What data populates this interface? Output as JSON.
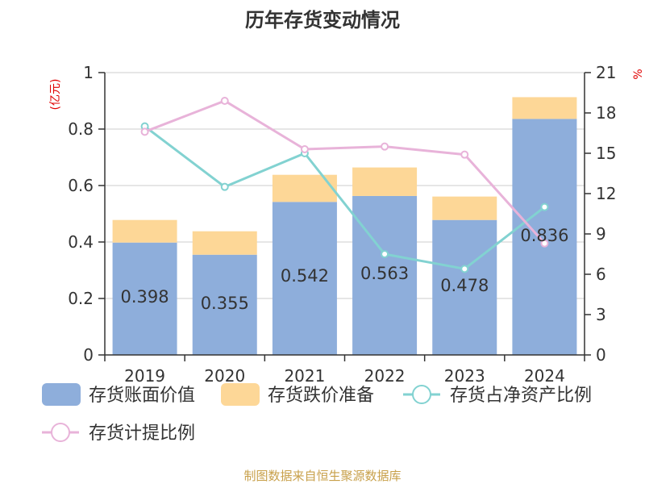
{
  "title": "历年存货变动情况",
  "unit_left": "(亿元)",
  "unit_right": "%",
  "source": "制图数据来自恒生聚源数据库",
  "colors": {
    "book_value": "#8eaedb",
    "impairment": "#fdd797",
    "net_asset_ratio": "#82d2d1",
    "provision_ratio": "#e8b3d9"
  },
  "chart_data": {
    "type": "bar",
    "categories": [
      "2019",
      "2020",
      "2021",
      "2022",
      "2023",
      "2024"
    ],
    "series": [
      {
        "name": "存货账面价值",
        "type": "bar",
        "axis": "left",
        "values": [
          0.398,
          0.355,
          0.542,
          0.563,
          0.478,
          0.836
        ]
      },
      {
        "name": "存货跌价准备",
        "type": "bar",
        "axis": "left",
        "stacked": true,
        "values": [
          0.08,
          0.083,
          0.096,
          0.101,
          0.083,
          0.077
        ]
      },
      {
        "name": "存货占净资产比例",
        "type": "line",
        "axis": "right",
        "values": [
          17.0,
          12.5,
          15.0,
          7.5,
          6.4,
          11.0
        ]
      },
      {
        "name": "存货计提比例",
        "type": "line",
        "axis": "right",
        "values": [
          16.6,
          18.9,
          15.3,
          15.5,
          14.9,
          8.3
        ]
      }
    ],
    "data_labels": [
      "0.398",
      "0.355",
      "0.542",
      "0.563",
      "0.478",
      "0.836"
    ],
    "y_left": {
      "min": 0,
      "max": 1,
      "ticks": [
        "0",
        "0.2",
        "0.4",
        "0.6",
        "0.8",
        "1"
      ]
    },
    "y_right": {
      "min": 0,
      "max": 21,
      "ticks": [
        "0",
        "3",
        "6",
        "9",
        "12",
        "15",
        "18",
        "21"
      ]
    },
    "grid": true,
    "legend_position": "bottom"
  }
}
